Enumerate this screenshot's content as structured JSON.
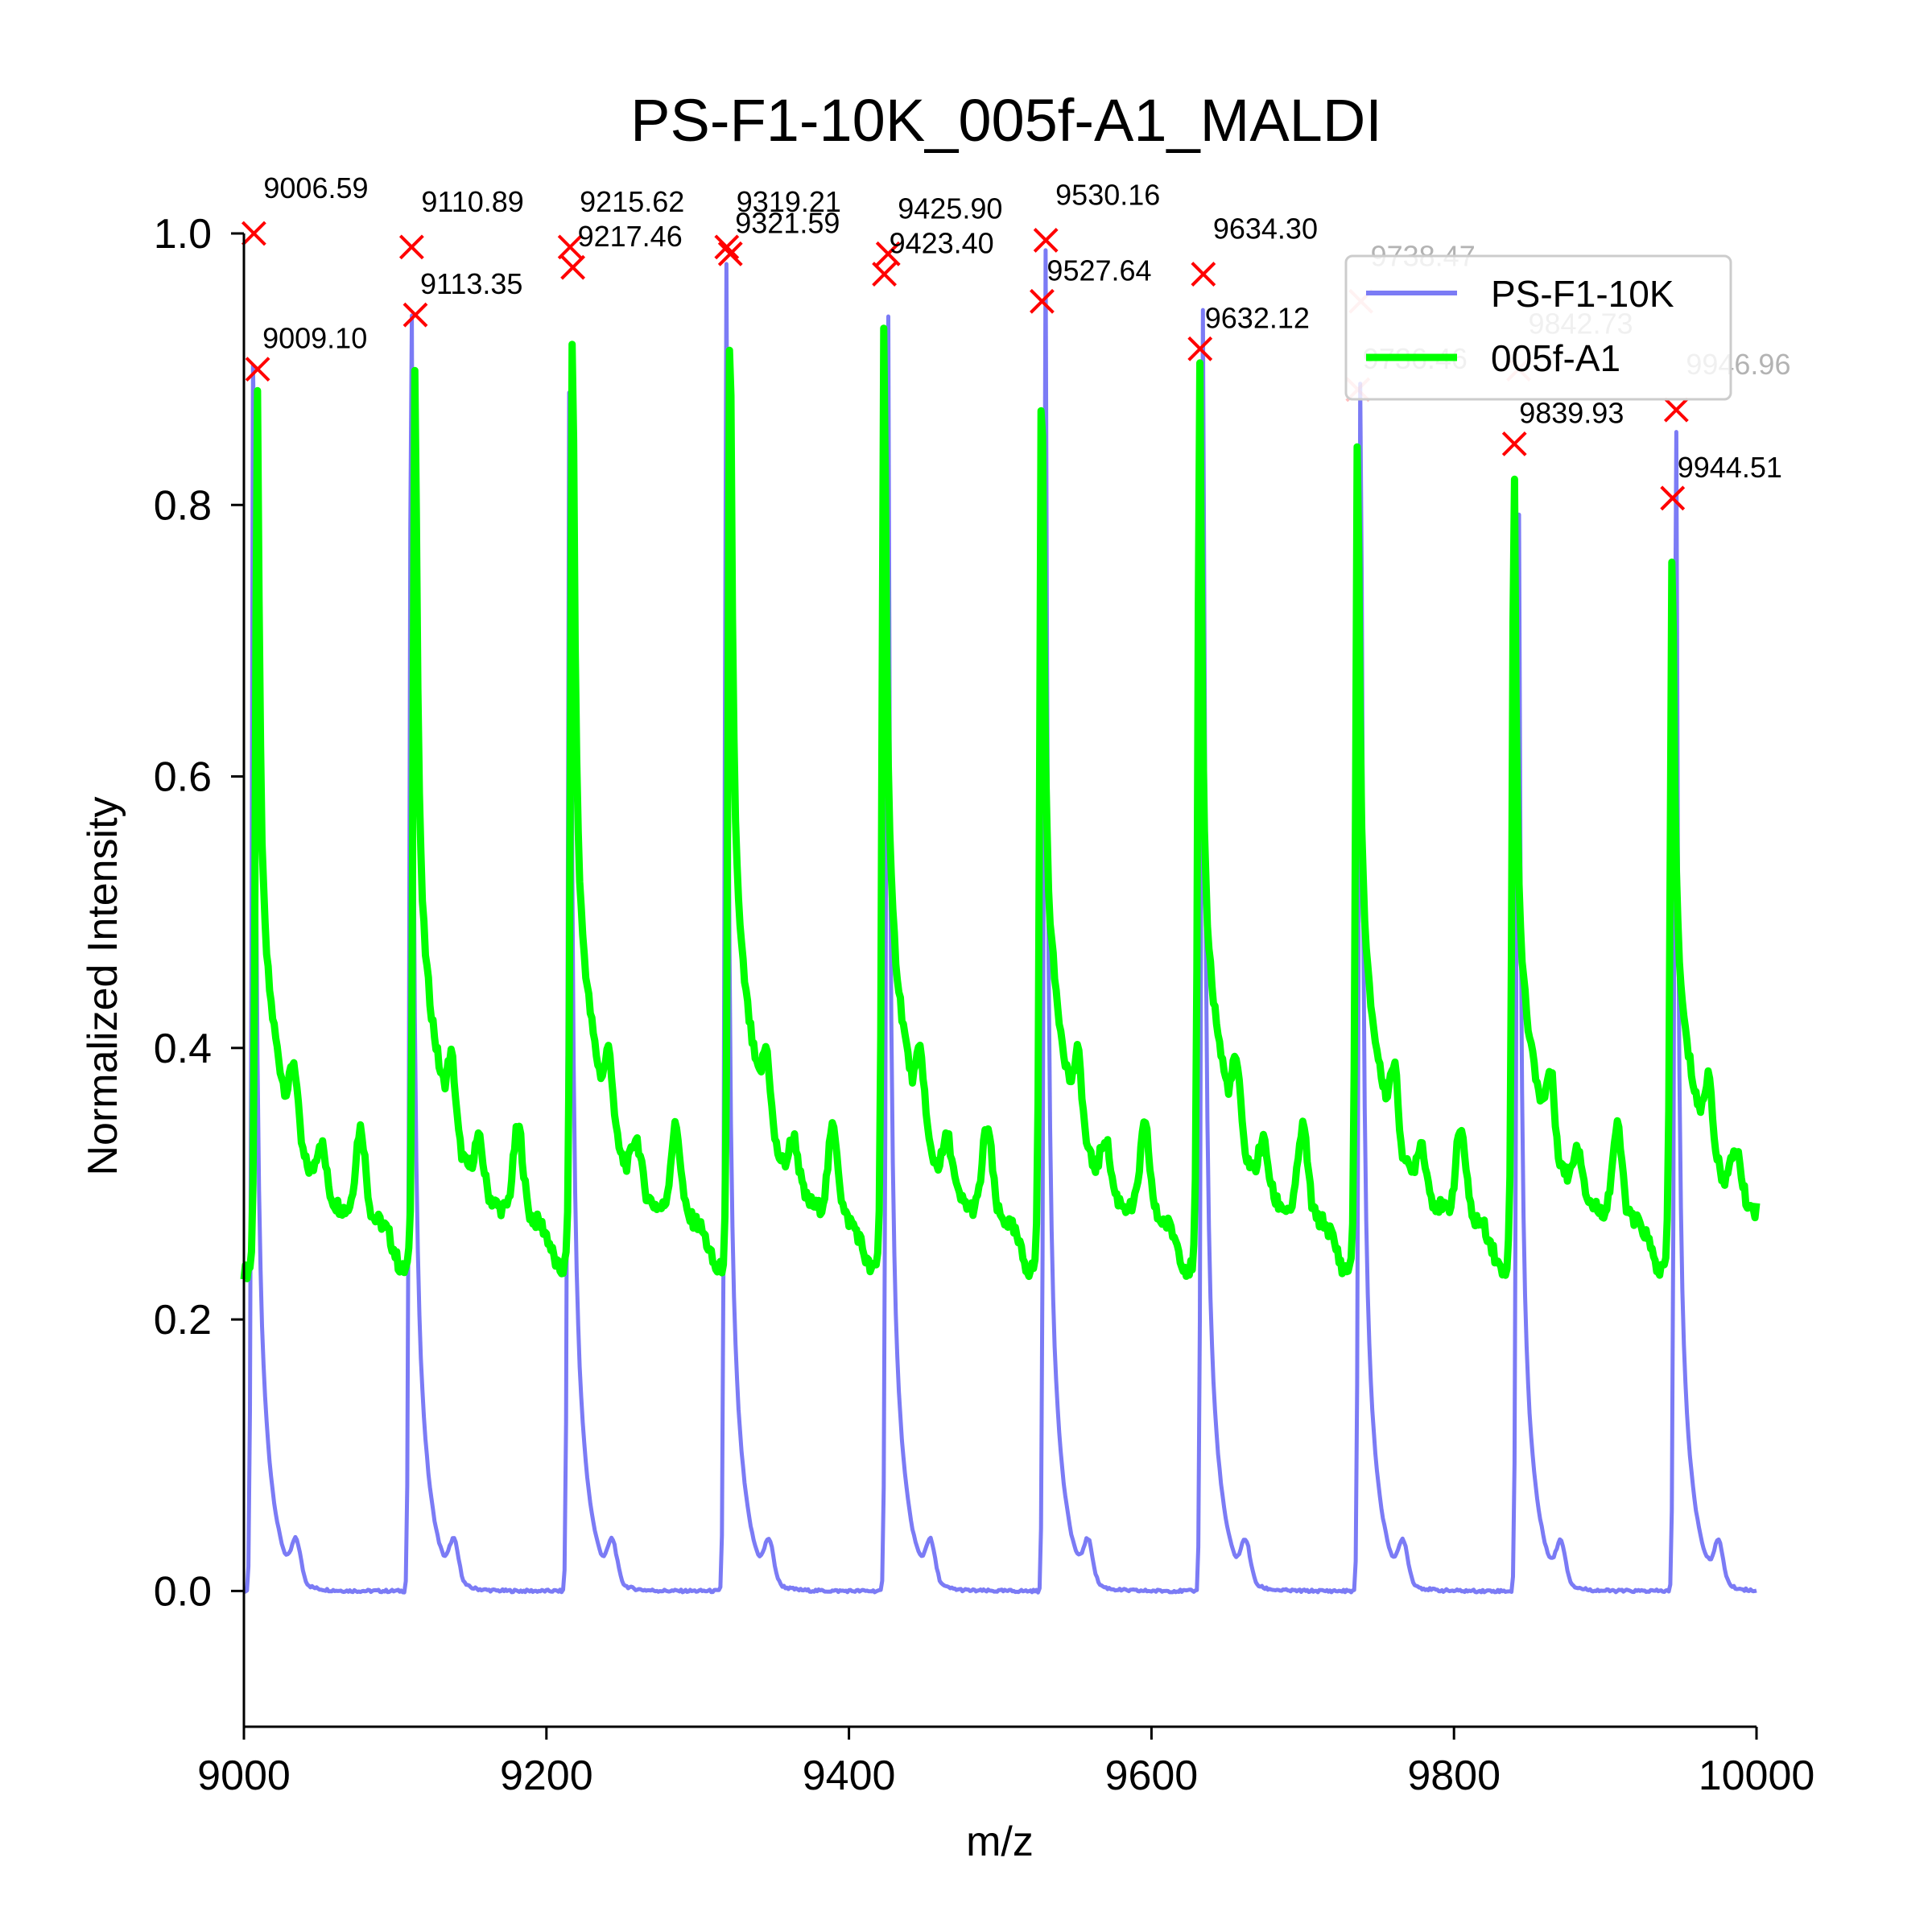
{
  "chart_data": {
    "type": "line",
    "title": "PS-F1-10K_005f-A1_MALDI",
    "xlabel": "m/z",
    "ylabel": "Normalized Intensity",
    "xlim": [
      9000,
      10000
    ],
    "ylim": [
      -0.1,
      1.0
    ],
    "xticks": [
      "9000",
      "9200",
      "9400",
      "9600",
      "9800",
      "10000"
    ],
    "yticks": [
      "0.0",
      "0.2",
      "0.4",
      "0.6",
      "0.8",
      "1.0"
    ],
    "grid": false,
    "legend_position": "top-right",
    "series": [
      {
        "name": "PS-F1-10K",
        "color": "#7b7bf5",
        "peaks": [
          {
            "x": 9006.59,
            "y": 1.0
          },
          {
            "x": 9110.89,
            "y": 0.99
          },
          {
            "x": 9215.62,
            "y": 0.99
          },
          {
            "x": 9319.21,
            "y": 0.99
          },
          {
            "x": 9425.9,
            "y": 0.985
          },
          {
            "x": 9530.16,
            "y": 0.995
          },
          {
            "x": 9634.3,
            "y": 0.97
          },
          {
            "x": 9738.47,
            "y": 0.95
          },
          {
            "x": 9842.73,
            "y": 0.9
          },
          {
            "x": 9946.96,
            "y": 0.87
          }
        ],
        "baseline": 0.0
      },
      {
        "name": "005f-A1",
        "color": "#00ff00",
        "peaks": [
          {
            "x": 9009.1,
            "y": 0.9
          },
          {
            "x": 9113.35,
            "y": 0.94
          },
          {
            "x": 9217.46,
            "y": 0.975
          },
          {
            "x": 9321.59,
            "y": 0.985
          },
          {
            "x": 9423.4,
            "y": 0.97
          },
          {
            "x": 9527.64,
            "y": 0.95
          },
          {
            "x": 9632.12,
            "y": 0.915
          },
          {
            "x": 9736.46,
            "y": 0.885
          },
          {
            "x": 9839.93,
            "y": 0.845
          },
          {
            "x": 9944.51,
            "y": 0.805
          }
        ],
        "baseline": 0.27
      }
    ],
    "peak_marker_color": "#ff0000"
  }
}
